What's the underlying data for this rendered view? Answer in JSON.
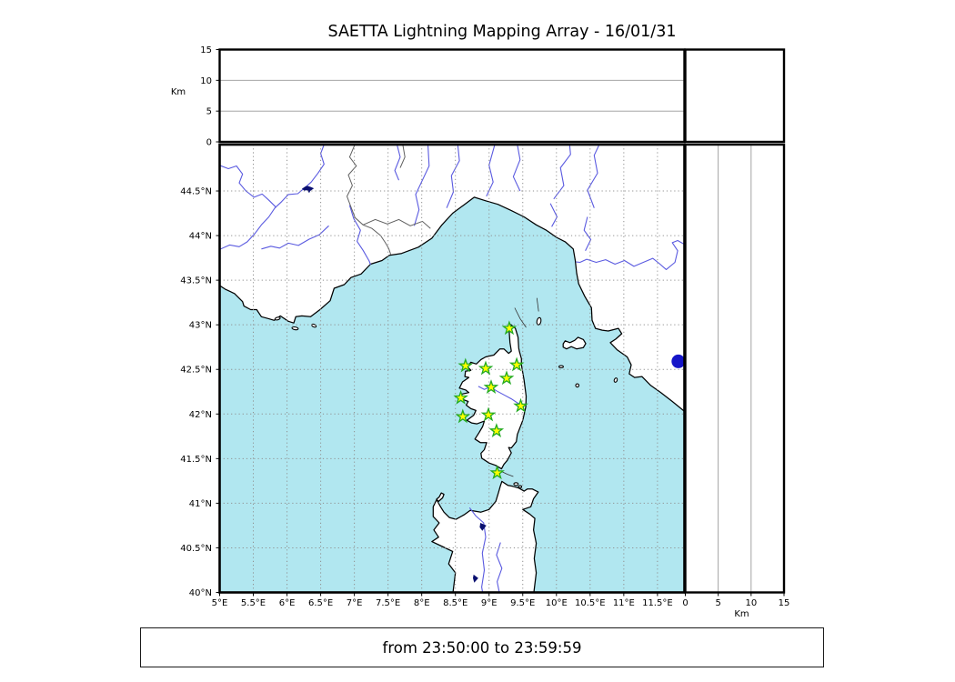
{
  "title": "SAETTA Lightning Mapping Array - 16/01/31",
  "footer_text": "from 23:50:00 to 23:59:59",
  "chart_data": {
    "type": "scatter",
    "title": "SAETTA Lightning Mapping Array - 16/01/31",
    "time_window": {
      "from": "23:50:00",
      "to": "23:59:59"
    },
    "panels": {
      "altitude_longitude": {
        "position": "top",
        "ylabel": "Km",
        "yticks": [
          0,
          5,
          10,
          15
        ],
        "ylim": [
          0,
          15
        ],
        "inner_gridlines_km": [
          5,
          10
        ],
        "points": []
      },
      "altitude_latitude": {
        "position": "right",
        "xlabel": "Km",
        "xticks": [
          0,
          5,
          10,
          15
        ],
        "xlim": [
          0,
          15
        ],
        "inner_gridlines_km": [
          5,
          10
        ],
        "points": []
      },
      "corner": {
        "position": "top-right",
        "content": "empty"
      },
      "map": {
        "xlim_deg_e": [
          5,
          11.9
        ],
        "ylim_deg_n": [
          40,
          45.02
        ],
        "xtick_values": [
          5,
          5.5,
          6,
          6.5,
          7,
          7.5,
          8,
          8.5,
          9,
          9.5,
          10,
          10.5,
          11,
          11.5
        ],
        "xtick_labels": [
          "5°E",
          "5.5°E",
          "6°E",
          "6.5°E",
          "7°E",
          "7.5°E",
          "8°E",
          "8.5°E",
          "9°E",
          "9.5°E",
          "10°E",
          "10.5°E",
          "11°E",
          "11.5°E"
        ],
        "ytick_values": [
          40,
          40.5,
          41,
          41.5,
          42,
          42.5,
          43,
          43.5,
          44,
          44.5
        ],
        "ytick_labels": [
          "40°N",
          "40.5°N",
          "41°N",
          "41.5°N",
          "42°N",
          "42.5°N",
          "43°N",
          "43.5°N",
          "44°N",
          "44.5°N"
        ],
        "grid": "dotted 0.5 degree graticule",
        "stations": [
          {
            "lon": 9.3,
            "lat": 42.96
          },
          {
            "lon": 8.65,
            "lat": 42.54
          },
          {
            "lon": 8.95,
            "lat": 42.51
          },
          {
            "lon": 9.41,
            "lat": 42.55
          },
          {
            "lon": 9.26,
            "lat": 42.4
          },
          {
            "lon": 9.03,
            "lat": 42.3
          },
          {
            "lon": 8.58,
            "lat": 42.18
          },
          {
            "lon": 9.47,
            "lat": 42.09
          },
          {
            "lon": 8.99,
            "lat": 41.99
          },
          {
            "lon": 8.61,
            "lat": 41.97
          },
          {
            "lon": 9.11,
            "lat": 41.81
          },
          {
            "lon": 9.12,
            "lat": 41.34
          }
        ],
        "lightning_points": []
      }
    },
    "colors": {
      "sea": "#b1e7f0",
      "land": "#ffffff",
      "coast": "#000000",
      "river": "#5a5ae0",
      "country_border": "#606060",
      "graticule": "#909090",
      "panel_gridline": "#999999",
      "station_fill": "#ffff00",
      "station_edge": "#22aa22",
      "lake_dark": "#0a1070",
      "lake_blue": "#1515c8"
    }
  }
}
